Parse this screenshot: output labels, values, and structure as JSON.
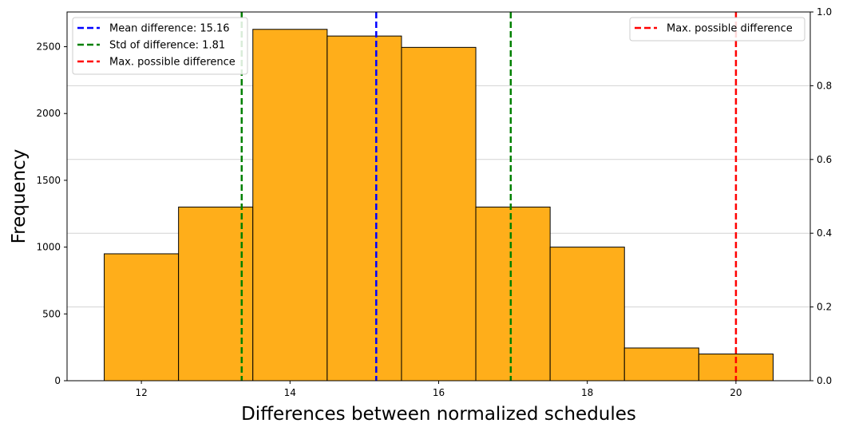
{
  "chart_data": {
    "type": "bar",
    "subtype": "histogram",
    "xlabel": "Differences between normalized schedules",
    "ylabel": "Frequency",
    "xlim": [
      11,
      21
    ],
    "ylim": [
      0,
      2760
    ],
    "right_ylim": [
      0,
      1
    ],
    "x_ticks": [
      12,
      14,
      16,
      18,
      20
    ],
    "y_ticks": [
      0,
      500,
      1000,
      1500,
      2000,
      2500
    ],
    "right_y_ticks": [
      "0.0",
      "0.2",
      "0.4",
      "0.6",
      "0.8",
      "1.0"
    ],
    "grid": "horizontal gridlines on right axis",
    "bar_color": "#ffae1a",
    "bar_edge_color": "#000000",
    "bins": [
      {
        "x0": 11.5,
        "x1": 12.5,
        "value": 950
      },
      {
        "x0": 12.5,
        "x1": 13.5,
        "value": 1300
      },
      {
        "x0": 13.5,
        "x1": 14.5,
        "value": 2630
      },
      {
        "x0": 14.5,
        "x1": 15.5,
        "value": 2580
      },
      {
        "x0": 15.5,
        "x1": 16.5,
        "value": 2495
      },
      {
        "x0": 16.5,
        "x1": 17.5,
        "value": 1300
      },
      {
        "x0": 17.5,
        "x1": 18.5,
        "value": 1000
      },
      {
        "x0": 18.5,
        "x1": 19.5,
        "value": 245
      },
      {
        "x0": 19.5,
        "x1": 20.5,
        "value": 200
      }
    ],
    "vlines": [
      {
        "x": 15.16,
        "color": "#0000ff"
      },
      {
        "x": 13.35,
        "color": "#008000"
      },
      {
        "x": 16.97,
        "color": "#008000"
      },
      {
        "x": 20.0,
        "color": "#ff0000"
      }
    ],
    "legend_left": {
      "placement": "top-left",
      "entries": [
        {
          "label": "Mean difference: 15.16",
          "color": "#0000ff"
        },
        {
          "label": "Std of difference: 1.81",
          "color": "#008000"
        },
        {
          "label": "Max. possible difference",
          "color": "#ff0000"
        }
      ]
    },
    "legend_right": {
      "placement": "top-right",
      "entries": [
        {
          "label": "Max. possible difference",
          "color": "#ff0000"
        }
      ]
    }
  }
}
